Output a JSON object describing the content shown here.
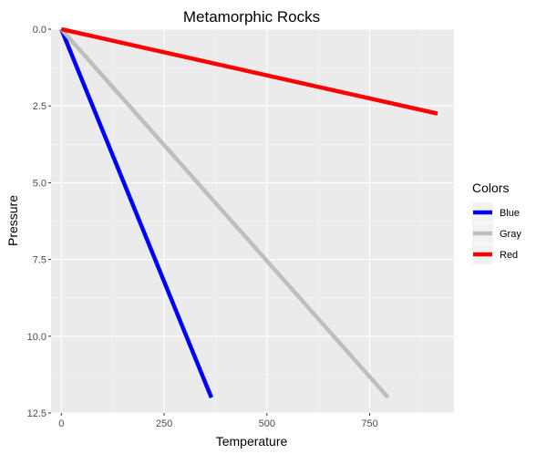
{
  "chart_data": {
    "type": "line",
    "title": "Metamorphic Rocks",
    "xlabel": "Temperature",
    "ylabel": "Pressure",
    "xlim": [
      -25,
      955
    ],
    "ylim": [
      0.0,
      12.5
    ],
    "y_reversed": true,
    "x_ticks": [
      0,
      250,
      500,
      750
    ],
    "y_ticks": [
      0.0,
      2.5,
      5.0,
      7.5,
      10.0,
      12.5
    ],
    "x_tick_labels": [
      "0",
      "250",
      "500",
      "750"
    ],
    "y_tick_labels": [
      "0.0",
      "2.5",
      "5.0",
      "7.5",
      "10.0",
      "12.5"
    ],
    "grid": true,
    "background": "#ebebeb",
    "legend": {
      "title": "Colors",
      "position": "right"
    },
    "series": [
      {
        "name": "Blue",
        "color": "#0000ff",
        "points": [
          [
            0,
            0.0
          ],
          [
            365,
            12.0
          ]
        ]
      },
      {
        "name": "Gray",
        "color": "#bebebe",
        "points": [
          [
            0,
            0.0
          ],
          [
            795,
            12.0
          ]
        ]
      },
      {
        "name": "Red",
        "color": "#ff0000",
        "points": [
          [
            0,
            0.0
          ],
          [
            915,
            2.75
          ]
        ]
      }
    ]
  }
}
